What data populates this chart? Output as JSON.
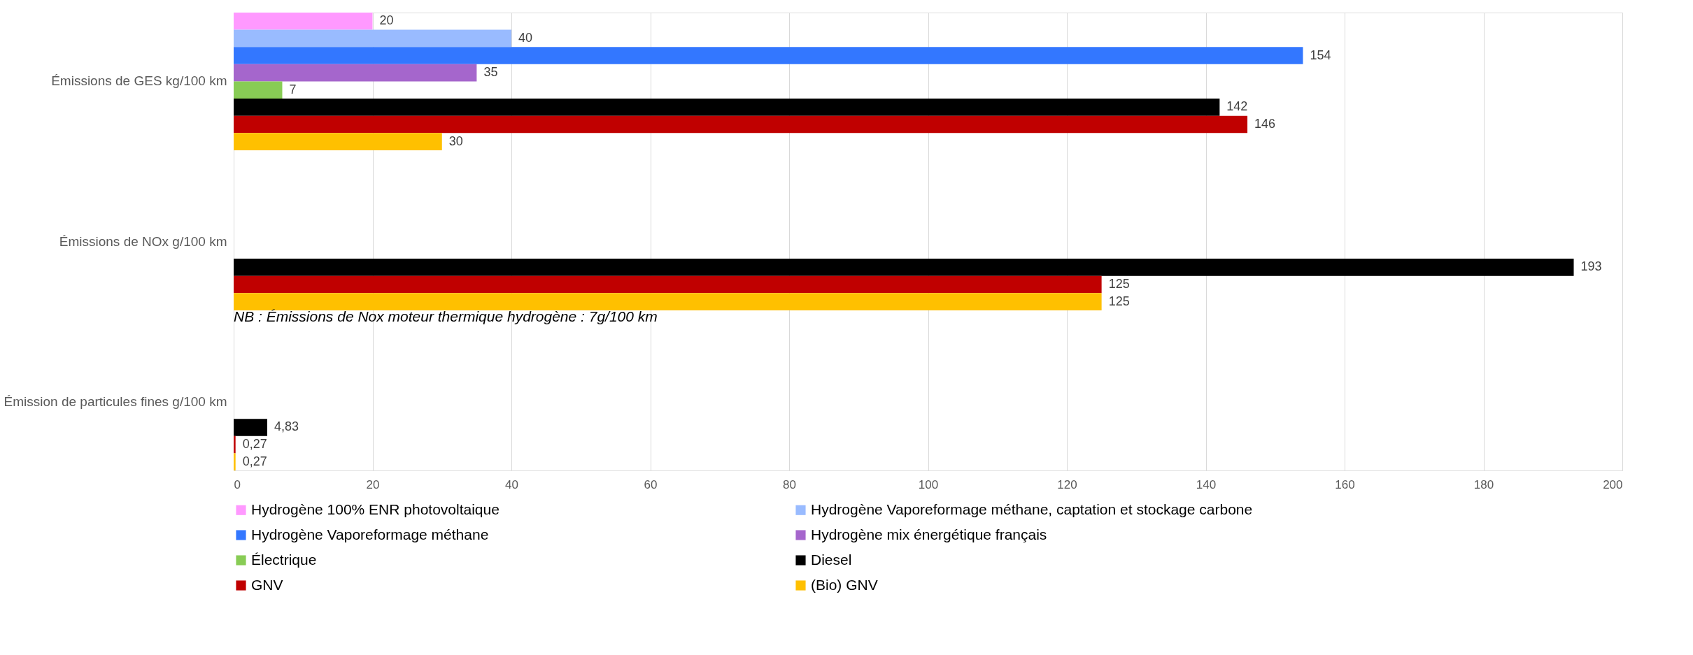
{
  "chart_data": {
    "type": "bar",
    "orientation": "horizontal",
    "categories": [
      "Émissions de GES kg/100 km",
      "Émissions de NOx g/100 km",
      "Émission de particules fines g/100 km"
    ],
    "series": [
      {
        "name": "Hydrogène 100% ENR photovoltaique",
        "color": "#ff99ff",
        "values": [
          20,
          null,
          null
        ],
        "value_labels": [
          "20",
          null,
          null
        ]
      },
      {
        "name": "Hydrogène Vaporeformage méthane, captation et stockage carbone",
        "color": "#99bbff",
        "values": [
          40,
          null,
          null
        ],
        "value_labels": [
          "40",
          null,
          null
        ]
      },
      {
        "name": "Hydrogène Vaporeformage méthane",
        "color": "#3377ff",
        "values": [
          154,
          null,
          null
        ],
        "value_labels": [
          "154",
          null,
          null
        ]
      },
      {
        "name": "Hydrogène mix énergétique français",
        "color": "#a566cc",
        "values": [
          35,
          null,
          null
        ],
        "value_labels": [
          "35",
          null,
          null
        ]
      },
      {
        "name": "Électrique",
        "color": "#88cc55",
        "values": [
          7,
          null,
          null
        ],
        "value_labels": [
          "7",
          null,
          null
        ]
      },
      {
        "name": "Diesel",
        "color": "#000000",
        "values": [
          142,
          193,
          4.83
        ],
        "value_labels": [
          "142",
          "193",
          "4,83"
        ]
      },
      {
        "name": "GNV",
        "color": "#c00000",
        "values": [
          146,
          125,
          0.27
        ],
        "value_labels": [
          "146",
          "125",
          "0,27"
        ]
      },
      {
        "name": "(Bio) GNV",
        "color": "#ffc000",
        "values": [
          30,
          125,
          0.27
        ],
        "value_labels": [
          "30",
          "125",
          "0,27"
        ]
      }
    ],
    "xlim": [
      0,
      200
    ],
    "xticks": [
      0,
      20,
      40,
      60,
      80,
      100,
      120,
      140,
      160,
      180,
      200
    ],
    "grid": "x",
    "legend": "bottom",
    "annotations": [
      "NB : Émissions de Nox moteur thermique hydrogène : 7g/100 km"
    ]
  }
}
